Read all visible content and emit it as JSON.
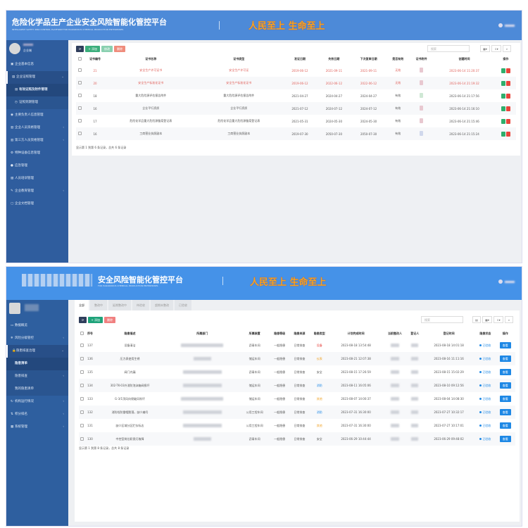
{
  "top": {
    "header": {
      "title": "危险化学品生产企业安全风险智能化管控平台",
      "subtitle": "INTELLIGENT SAFETY RISK CONTROL PLATFORM FOR HAZARDOUS CHEMICAL PRODUCTION ENTERPRISES",
      "slogan": "人民至上 生命至上"
    },
    "user": {
      "role": "企业端"
    },
    "sidebar": [
      {
        "label": "企业基本信息",
        "icon": "building-icon"
      },
      {
        "label": "企业证照管理",
        "icon": "certificate-icon",
        "open": true
      },
      {
        "label": "有效证照及附件管理",
        "icon": "file-icon",
        "child": true,
        "active": true
      },
      {
        "label": "证照到期管理",
        "icon": "clock-icon",
        "child": true
      },
      {
        "label": "主要负责人信息管理",
        "icon": "person-icon"
      },
      {
        "label": "企业人员资格管理",
        "icon": "users-icon",
        "arrow": true
      },
      {
        "label": "第三方人员资格管理",
        "icon": "users-icon",
        "arrow": true
      },
      {
        "label": "特种设备信息管理",
        "icon": "gear-icon"
      },
      {
        "label": "应急管理",
        "icon": "circle-icon"
      },
      {
        "label": "人员培训管理",
        "icon": "book-icon"
      },
      {
        "label": "企业教育管理",
        "icon": "education-icon",
        "arrow": true
      },
      {
        "label": "企业文档管理",
        "icon": "folder-icon"
      }
    ],
    "toolbar": {
      "add": "+ 添加",
      "edit": "修改",
      "delete": "删除",
      "search_placeholder": "搜索"
    },
    "columns": [
      "证书编号",
      "证书名称",
      "证书类型",
      "发证日期",
      "失效日期",
      "下次复审日期",
      "是否有效",
      "证书附件",
      "创建时间",
      "操作"
    ],
    "rows": [
      {
        "id": "21",
        "name": "安全生产许可证书",
        "type": "安全生产许可证",
        "issue": "2019-06-12",
        "expire": "2021-09-11",
        "review": "2021-09-11",
        "valid": "无效",
        "created": "2023-06-14 11:20:37",
        "expired": true
      },
      {
        "id": "20",
        "name": "安全生产标准化证书",
        "type": "安全生产标准化证书",
        "issue": "2019-06-12",
        "expire": "2022-06-12",
        "review": "2022-06-12",
        "valid": "无效",
        "created": "2023-06-14 21:19:32",
        "expired": true
      },
      {
        "id": "18",
        "name": "重大危险源评估报告附件",
        "type": "重大危险源评估报告附件",
        "issue": "2021-04-27",
        "expire": "2024-04-27",
        "review": "2024-04-27",
        "valid": "有效",
        "created": "2023-06-14 21:17:56"
      },
      {
        "id": "16",
        "name": "企业平行资质",
        "type": "企业平行资质",
        "issue": "2021-07-12",
        "expire": "2024-07-12",
        "review": "2024-07-12",
        "valid": "有效",
        "created": "2023-06-14 21:16:10"
      },
      {
        "id": "17",
        "name": "危险化学品重大危险源备案登记表",
        "type": "危险化学品重大危险源备案登记表",
        "issue": "2021-05-31",
        "expire": "2024-05-30",
        "review": "2024-05-30",
        "valid": "有效",
        "created": "2023-06-14 21:15:46"
      },
      {
        "id": "16",
        "name": "工商营业执照副本",
        "type": "工商营业执照副本",
        "issue": "2019-07-30",
        "expire": "2050-07-30",
        "review": "2050-07-30",
        "valid": "有效",
        "created": "2023-06-14 21:15:24"
      }
    ],
    "footer": "显示第 1 到第 6 条记录，总共 6 条记录"
  },
  "bottom": {
    "header": {
      "title": "安全风险智能化管控平台",
      "subtitle": "FOR HAZARDOUS CHEMICAL PRODUCTION ENTERPRISES",
      "slogan": "人民至上 生命至上"
    },
    "sidebar": [
      {
        "label": "数据概览",
        "icon": "monitor-icon"
      },
      {
        "label": "风险分级管控",
        "icon": "snowflake-icon",
        "arrow": true
      },
      {
        "label": "隐患排查治理",
        "icon": "lock-icon",
        "open": true
      },
      {
        "label": "隐患清单",
        "icon": "",
        "child": true,
        "active": true
      },
      {
        "label": "隐患排查",
        "icon": "",
        "child": true,
        "arrow": true
      },
      {
        "label": "我的隐患清单",
        "icon": "",
        "child": true
      },
      {
        "label": "机构运行情况",
        "icon": "refresh-icon",
        "arrow": true
      },
      {
        "label": "积分排名",
        "icon": "ranking-icon",
        "arrow": true
      },
      {
        "label": "系统管理",
        "icon": "grid-icon",
        "arrow": true
      }
    ],
    "tabs": [
      "全部",
      "整改中",
      "延期整改中",
      "待验收",
      "超期未整改",
      "已验收"
    ],
    "toolbar": {
      "add": "+ 添加",
      "delete": "删除",
      "search_placeholder": "搜索"
    },
    "columns": [
      "序号",
      "隐患描述",
      "所属部门",
      "所属装置",
      "隐患等级",
      "隐患来源",
      "隐患类型",
      "计划完成时间",
      "当前整改人",
      "登记人",
      "登记时间",
      "隐患状态",
      "操作"
    ],
    "rows": [
      {
        "no": "137",
        "desc": "设备清洁",
        "unit": "沥青车间",
        "level": "一般隐患",
        "source": "日常排查",
        "type": "设备",
        "type_color": "#e53935",
        "plan": "2023-08-18 13:54:48",
        "time": "2023-08-18 14:01:18",
        "status": "已验收",
        "action": "查看"
      },
      {
        "no": "136",
        "desc": "压力表使用生锈",
        "unit": "储运车间",
        "level": "一般隐患",
        "source": "日常排查",
        "type": "仪表",
        "type_color": "#f0a020",
        "plan": "2023-08-21 12:07:38",
        "time": "2023-08-16 11:11:16",
        "status": "已验收",
        "action": "查看"
      },
      {
        "no": "135",
        "desc": "阀门内漏",
        "unit": "沥青车间",
        "level": "一般隐患",
        "source": "日常排查",
        "type": "安全",
        "type_color": "#555555",
        "plan": "2023-08-15 17:26:59",
        "time": "2023-08-15 15:02:29",
        "status": "已验收",
        "action": "查看"
      },
      {
        "no": "134",
        "desc": "302-TK-03外消防泡沫箱阀损坏",
        "unit": "储运车间",
        "level": "一般隐患",
        "source": "日常排查",
        "type": "消防",
        "type_color": "#1e88e5",
        "plan": "2023-08-11 16:05:06",
        "time": "2023-08-10 09:12:56",
        "status": "已验收",
        "action": "查看"
      },
      {
        "no": "133",
        "desc": "G-3/1顶风向袋破风吹坏",
        "unit": "储运车间",
        "level": "一般隐患",
        "source": "日常排查",
        "type": "其他",
        "type_color": "#f0a020",
        "plan": "2023-08-07 14:00:37",
        "time": "2023-08-04 14:08:30",
        "status": "已验收",
        "action": "查看"
      },
      {
        "no": "132",
        "desc": "消防栓防雷帽脱落，缺少编号",
        "unit": "公用工程车间",
        "level": "一般隐患",
        "source": "日常排查",
        "type": "消防",
        "type_color": "#1e88e5",
        "plan": "2023-07-31 16:30:00",
        "time": "2023-07-27 10:32:17",
        "status": "已验收",
        "action": "查看"
      },
      {
        "no": "131",
        "desc": "缺少区域分区贮存标志",
        "unit": "公用工程车间",
        "level": "一般隐患",
        "source": "日常排查",
        "type": "其他",
        "type_color": "#f0a020",
        "plan": "2023-07-31 16:30:00",
        "time": "2023-07-27 10:17:01",
        "status": "已验收",
        "action": "查看"
      },
      {
        "no": "130",
        "desc": "中控室岗位职责灯故障",
        "unit": "沥青车间",
        "level": "一般隐患",
        "source": "日常排查",
        "type": "安全",
        "type_color": "#555555",
        "plan": "2023-06-29 10:44:44",
        "time": "2023-06-29 09:48:02",
        "status": "已验收",
        "action": "查看"
      }
    ],
    "footer": "显示第 1 到第 8 条记录，总共 8 条记录"
  }
}
